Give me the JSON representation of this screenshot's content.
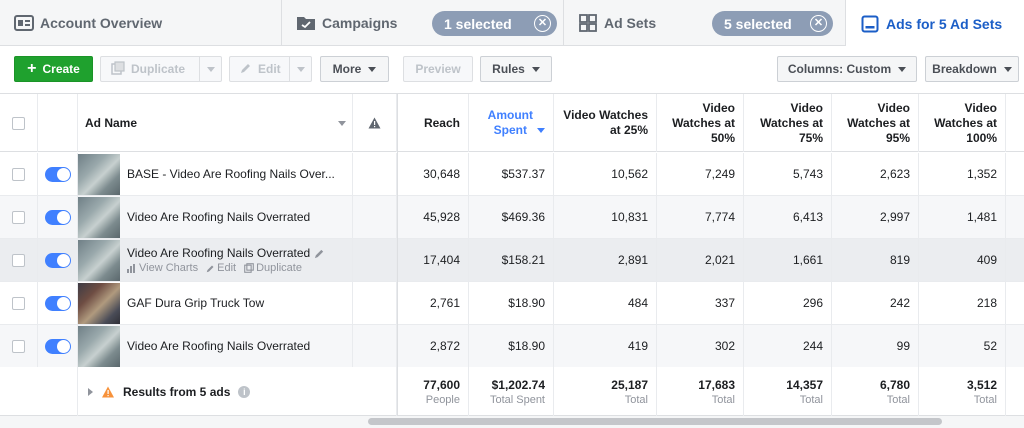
{
  "tabs": {
    "account": {
      "label": "Account Overview"
    },
    "campaigns": {
      "label": "Campaigns",
      "badge": "1 selected"
    },
    "adsets": {
      "label": "Ad Sets",
      "badge": "5 selected"
    },
    "ads": {
      "label": "Ads for 5 Ad Sets"
    }
  },
  "toolbar": {
    "create": "Create",
    "duplicate": "Duplicate",
    "edit": "Edit",
    "more": "More",
    "preview": "Preview",
    "rules": "Rules",
    "columns": "Columns: Custom",
    "breakdown": "Breakdown"
  },
  "columns": {
    "ad_name": "Ad Name",
    "reach": "Reach",
    "amount_spent_1": "Amount",
    "amount_spent_2": "Spent",
    "vw25_1": "Video Watches",
    "vw25_2": "at 25%",
    "vw50_1": "Video",
    "vw50_2": "Watches at",
    "vw50_3": "50%",
    "vw75_1": "Video",
    "vw75_2": "Watches at",
    "vw75_3": "75%",
    "vw95_1": "Video",
    "vw95_2": "Watches at",
    "vw95_3": "95%",
    "vw100_1": "Video",
    "vw100_2": "Watches at",
    "vw100_3": "100%"
  },
  "rows": [
    {
      "name": "BASE - Video Are Roofing Nails Over...",
      "reach": "30,648",
      "spent": "$537.37",
      "vw25": "10,562",
      "vw50": "7,249",
      "vw75": "5,743",
      "vw95": "2,623",
      "vw100": "1,352",
      "thumb": "roof"
    },
    {
      "name": "Video Are Roofing Nails Overrated",
      "reach": "45,928",
      "spent": "$469.36",
      "vw25": "10,831",
      "vw50": "7,774",
      "vw75": "6,413",
      "vw95": "2,997",
      "vw100": "1,481",
      "thumb": "roof"
    },
    {
      "name": "Video Are Roofing Nails Overrated",
      "reach": "17,404",
      "spent": "$158.21",
      "vw25": "2,891",
      "vw50": "2,021",
      "vw75": "1,661",
      "vw95": "819",
      "vw100": "409",
      "thumb": "roof"
    },
    {
      "name": "GAF Dura Grip Truck Tow",
      "reach": "2,761",
      "spent": "$18.90",
      "vw25": "484",
      "vw50": "337",
      "vw75": "296",
      "vw95": "242",
      "vw100": "218",
      "thumb": "truck"
    },
    {
      "name": "Video Are Roofing Nails Overrated",
      "reach": "2,872",
      "spent": "$18.90",
      "vw25": "419",
      "vw50": "302",
      "vw75": "244",
      "vw95": "99",
      "vw100": "52",
      "thumb": "roof"
    }
  ],
  "row_actions": {
    "view_charts": "View Charts",
    "edit": "Edit",
    "duplicate": "Duplicate"
  },
  "footer": {
    "label": "Results from 5 ads",
    "reach": "77,600",
    "reach_sub": "People",
    "spent": "$1,202.74",
    "spent_sub": "Total Spent",
    "vw25": "25,187",
    "vw25_sub": "Total",
    "vw50": "17,683",
    "vw50_sub": "Total",
    "vw75": "14,357",
    "vw75_sub": "Total",
    "vw95": "6,780",
    "vw95_sub": "Total",
    "vw100": "3,512",
    "vw100_sub": "Total"
  },
  "colors": {
    "accent": "#4080ff",
    "create_green": "#1fa12e",
    "badge": "#8d9db5",
    "active_tab": "#1b5ec7"
  }
}
